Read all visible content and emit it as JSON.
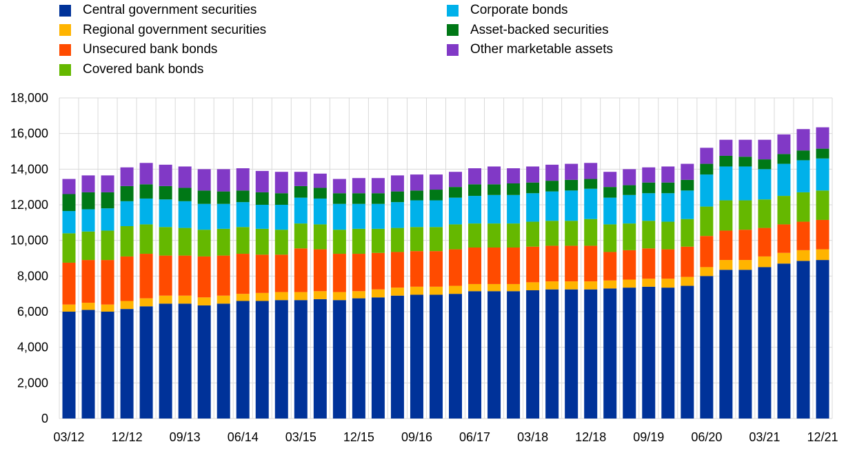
{
  "chart_data": {
    "type": "bar",
    "stacked": true,
    "title": "",
    "xlabel": "",
    "ylabel": "",
    "ylim": [
      0,
      18000
    ],
    "yticks": [
      "0",
      "2,000",
      "4,000",
      "6,000",
      "8,000",
      "10,000",
      "12,000",
      "14,000",
      "16,000",
      "18,000"
    ],
    "grid": true,
    "legend_position": "top",
    "categories": [
      "03/12",
      "06/12",
      "09/12",
      "12/12",
      "03/13",
      "06/13",
      "09/13",
      "12/13",
      "03/14",
      "06/14",
      "09/14",
      "12/14",
      "03/15",
      "06/15",
      "09/15",
      "12/15",
      "03/16",
      "06/16",
      "09/16",
      "12/16",
      "03/17",
      "06/17",
      "09/17",
      "12/17",
      "03/18",
      "06/18",
      "09/18",
      "12/18",
      "03/19",
      "06/19",
      "09/19",
      "12/19",
      "03/20",
      "06/20",
      "09/20",
      "12/20",
      "03/21",
      "06/21",
      "09/21",
      "12/21"
    ],
    "xtick_labels": [
      "03/12",
      "12/12",
      "09/13",
      "06/14",
      "03/15",
      "12/15",
      "09/16",
      "06/17",
      "03/18",
      "12/18",
      "09/19",
      "06/20",
      "03/21",
      "12/21"
    ],
    "series": [
      {
        "name": "Central government securities",
        "color": "#003299",
        "values": [
          6000,
          6100,
          6000,
          6150,
          6300,
          6450,
          6450,
          6350,
          6450,
          6600,
          6600,
          6650,
          6650,
          6700,
          6650,
          6750,
          6800,
          6900,
          6950,
          6950,
          7000,
          7150,
          7150,
          7150,
          7200,
          7250,
          7250,
          7250,
          7300,
          7350,
          7400,
          7350,
          7450,
          8000,
          8350,
          8350,
          8500,
          8700,
          8850,
          8900
        ]
      },
      {
        "name": "Regional government securities",
        "color": "#FFB400",
        "values": [
          400,
          400,
          400,
          450,
          450,
          450,
          450,
          450,
          450,
          400,
          450,
          450,
          450,
          450,
          450,
          400,
          450,
          450,
          450,
          450,
          450,
          400,
          400,
          400,
          450,
          450,
          450,
          450,
          450,
          450,
          450,
          500,
          500,
          500,
          550,
          550,
          600,
          600,
          600,
          600
        ]
      },
      {
        "name": "Unsecured bank bonds",
        "color": "#FF4B00",
        "values": [
          2350,
          2400,
          2500,
          2500,
          2500,
          2250,
          2250,
          2300,
          2250,
          2250,
          2150,
          2100,
          2450,
          2350,
          2150,
          2100,
          2050,
          2000,
          2000,
          2000,
          2050,
          2050,
          2050,
          2050,
          2000,
          2000,
          2000,
          2000,
          1600,
          1650,
          1700,
          1650,
          1700,
          1750,
          1650,
          1700,
          1600,
          1600,
          1600,
          1650
        ]
      },
      {
        "name": "Covered bank bonds",
        "color": "#65B800",
        "values": [
          1650,
          1600,
          1650,
          1700,
          1650,
          1600,
          1550,
          1500,
          1500,
          1500,
          1450,
          1400,
          1400,
          1400,
          1350,
          1400,
          1350,
          1350,
          1350,
          1350,
          1400,
          1350,
          1350,
          1350,
          1400,
          1400,
          1400,
          1500,
          1550,
          1500,
          1550,
          1550,
          1550,
          1650,
          1700,
          1650,
          1600,
          1600,
          1650,
          1650
        ]
      },
      {
        "name": "Corporate bonds",
        "color": "#00B1EA",
        "values": [
          1250,
          1250,
          1250,
          1400,
          1450,
          1550,
          1500,
          1450,
          1400,
          1400,
          1350,
          1400,
          1450,
          1450,
          1450,
          1400,
          1400,
          1450,
          1500,
          1500,
          1500,
          1550,
          1600,
          1600,
          1600,
          1650,
          1700,
          1700,
          1500,
          1600,
          1550,
          1600,
          1600,
          1800,
          1900,
          1900,
          1700,
          1800,
          1800,
          1800
        ]
      },
      {
        "name": "Asset-backed securities",
        "color": "#007816",
        "values": [
          950,
          950,
          900,
          850,
          800,
          750,
          750,
          750,
          700,
          650,
          700,
          650,
          650,
          600,
          600,
          600,
          600,
          600,
          550,
          600,
          600,
          650,
          600,
          650,
          600,
          600,
          600,
          550,
          600,
          550,
          600,
          600,
          600,
          600,
          600,
          550,
          550,
          550,
          550,
          550
        ]
      },
      {
        "name": "Other marketable assets",
        "color": "#8139C6",
        "values": [
          850,
          950,
          950,
          1050,
          1200,
          1200,
          1200,
          1200,
          1250,
          1250,
          1200,
          1200,
          800,
          800,
          800,
          850,
          850,
          900,
          900,
          850,
          850,
          900,
          1000,
          850,
          900,
          900,
          900,
          900,
          850,
          900,
          850,
          900,
          900,
          900,
          900,
          950,
          1100,
          1100,
          1200,
          1200
        ]
      }
    ]
  }
}
